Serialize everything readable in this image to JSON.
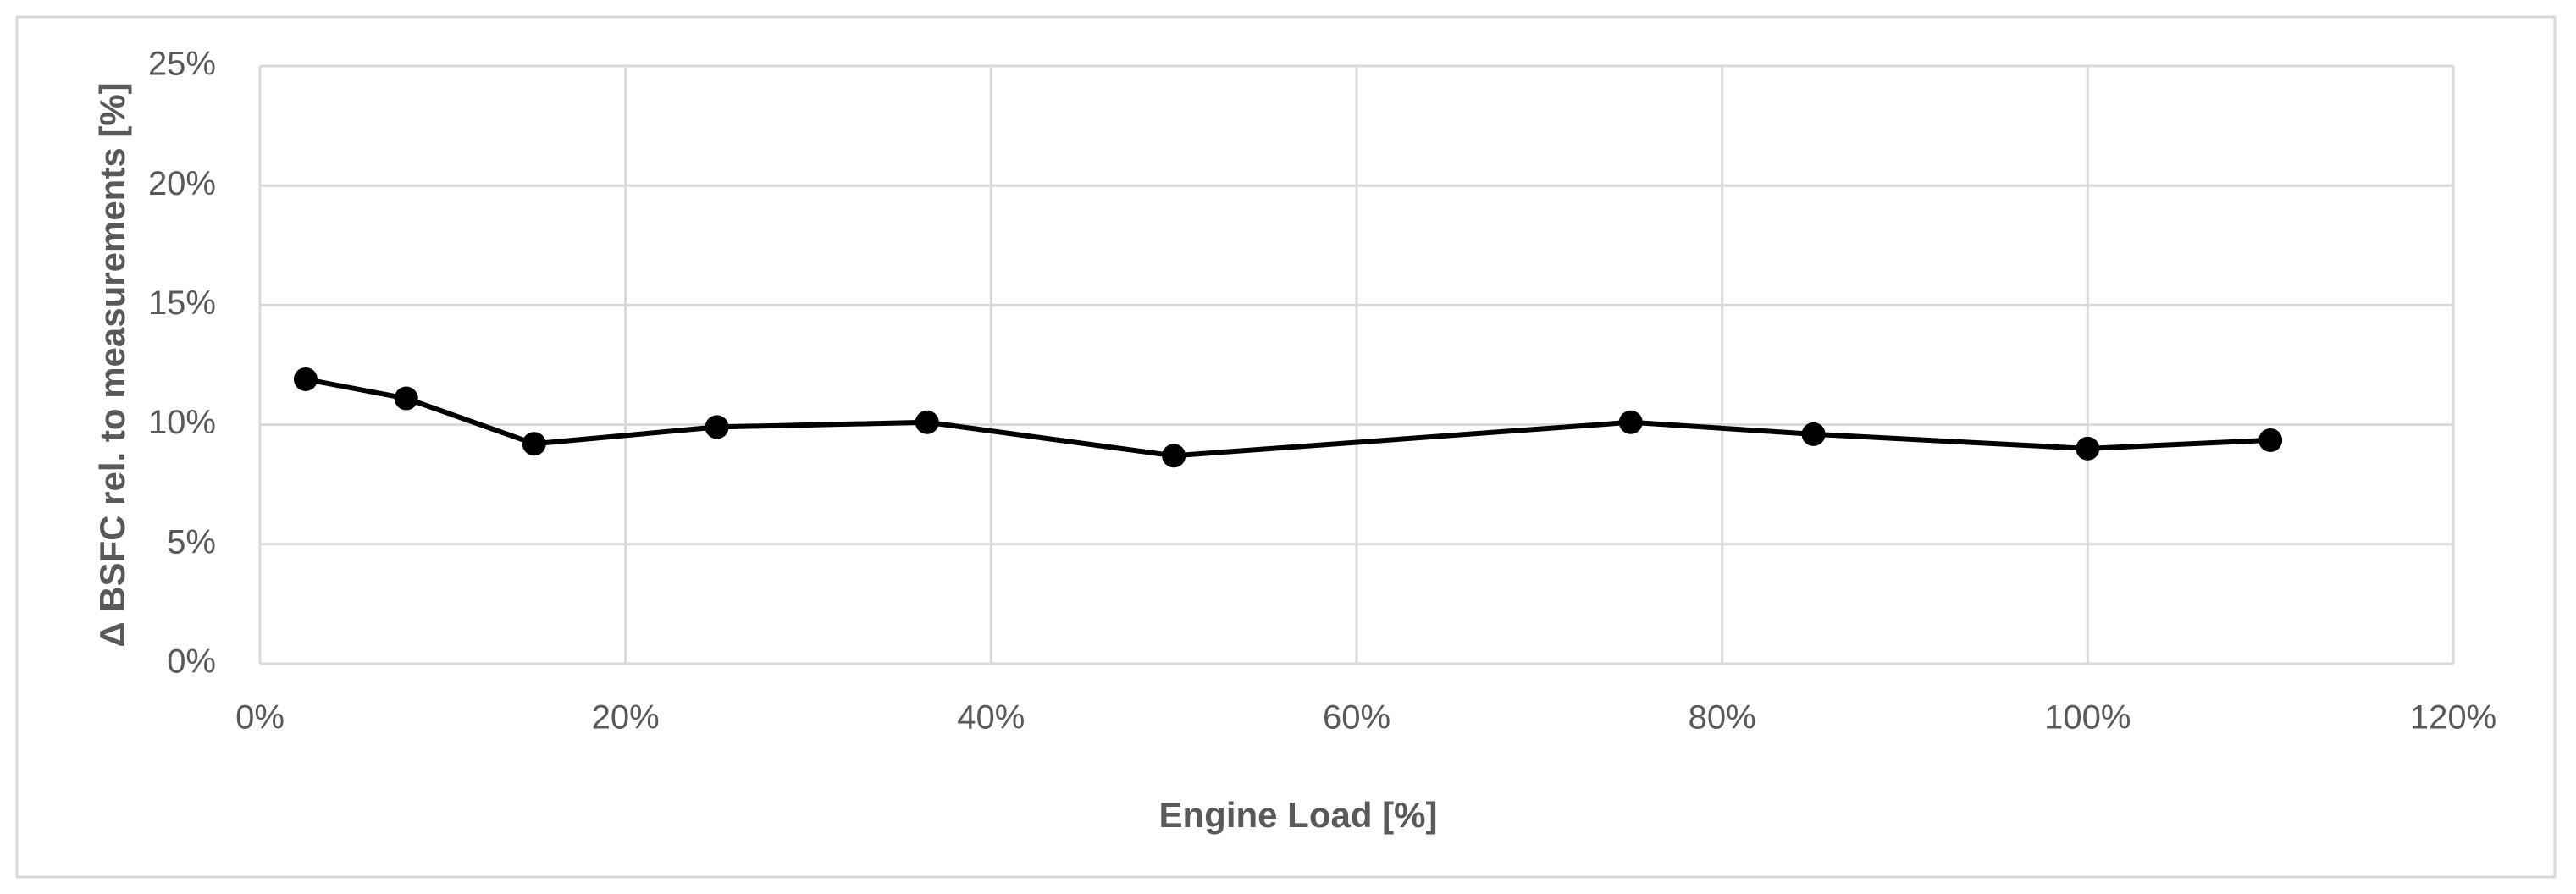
{
  "chart_data": {
    "type": "line",
    "x_label": "Engine Load [%]",
    "y_label": "Δ BSFC rel. to measurements [%]",
    "x": [
      2.5,
      8,
      15,
      25,
      36.5,
      50,
      75,
      85,
      100,
      110
    ],
    "series": [
      {
        "color": "#000000",
        "values": [
          11.9,
          11.1,
          9.2,
          9.9,
          10.1,
          8.7,
          10.1,
          9.6,
          9.0,
          9.35
        ]
      }
    ],
    "xlim": [
      0,
      120
    ],
    "xticks": [
      {
        "value": 0,
        "label": "0%"
      },
      {
        "value": 20,
        "label": "20%"
      },
      {
        "value": 40,
        "label": "40%"
      },
      {
        "value": 60,
        "label": "60%"
      },
      {
        "value": 80,
        "label": "80%"
      },
      {
        "value": 100,
        "label": "100%"
      },
      {
        "value": 120,
        "label": "120%"
      }
    ],
    "ylim": [
      0,
      25
    ],
    "yticks": [
      {
        "value": 0,
        "label": "0%"
      },
      {
        "value": 5,
        "label": "5%"
      },
      {
        "value": 10,
        "label": "10%"
      },
      {
        "value": 15,
        "label": "15%"
      },
      {
        "value": 20,
        "label": "20%"
      },
      {
        "value": 25,
        "label": "25%"
      }
    ],
    "grid": true
  }
}
